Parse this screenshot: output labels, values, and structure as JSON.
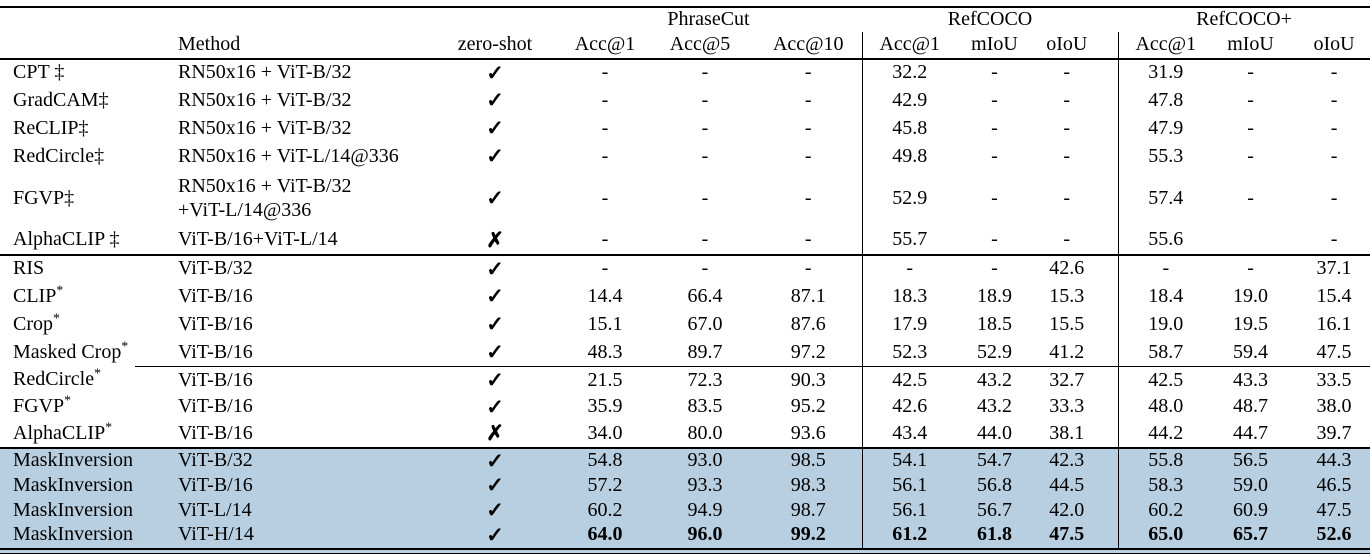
{
  "table": {
    "group_headers": [
      {
        "label": "",
        "span": 3
      },
      {
        "label": "PhraseCut",
        "span": 3
      },
      {
        "label": "RefCOCO",
        "span": 3
      },
      {
        "label": "RefCOCO+",
        "span": 3
      }
    ],
    "column_headers": [
      "",
      "Method",
      "zero-shot",
      "Acc@1",
      "Acc@5",
      "Acc@10",
      "Acc@1",
      "mIoU",
      "oIoU",
      "Acc@1",
      "mIoU",
      "oIoU"
    ],
    "zero_shot_symbols": {
      "yes": "✓",
      "no": "✗"
    },
    "highlight_color": "#b7cfe1",
    "blocks": [
      {
        "id": "dagger-baselines",
        "separator": "none",
        "highlight": false,
        "rows": [
          {
            "method": "CPT ‡",
            "sup": "",
            "backbone": [
              "RN50x16 + ViT-B/32"
            ],
            "zero_shot": "yes",
            "values": [
              "-",
              "-",
              "-",
              "32.2",
              "-",
              "-",
              "31.9",
              "-",
              "-"
            ]
          },
          {
            "method": "GradCAM‡",
            "sup": "",
            "backbone": [
              "RN50x16 + ViT-B/32"
            ],
            "zero_shot": "yes",
            "values": [
              "-",
              "-",
              "-",
              "42.9",
              "-",
              "-",
              "47.8",
              "-",
              "-"
            ]
          },
          {
            "method": "ReCLIP‡",
            "sup": "",
            "backbone": [
              "RN50x16 + ViT-B/32"
            ],
            "zero_shot": "yes",
            "values": [
              "-",
              "-",
              "-",
              "45.8",
              "-",
              "-",
              "47.9",
              "-",
              "-"
            ]
          },
          {
            "method": "RedCircle‡",
            "sup": "",
            "backbone": [
              "RN50x16 + ViT-L/14@336"
            ],
            "zero_shot": "yes",
            "values": [
              "-",
              "-",
              "-",
              "49.8",
              "-",
              "-",
              "55.3",
              "-",
              "-"
            ]
          },
          {
            "method": "FGVP‡",
            "sup": "",
            "backbone": [
              "RN50x16 + ViT-B/32",
              "+ViT-L/14@336"
            ],
            "zero_shot": "yes",
            "tall": true,
            "values": [
              "-",
              "-",
              "-",
              "52.9",
              "-",
              "-",
              "57.4",
              "-",
              "-"
            ]
          },
          {
            "method": "AlphaCLIP ‡",
            "sup": "",
            "backbone": [
              "ViT-B/16+ViT-L/14"
            ],
            "zero_shot": "no",
            "values": [
              "-",
              "-",
              "-",
              "55.7",
              "-",
              "-",
              "55.6",
              "",
              "-"
            ]
          }
        ]
      },
      {
        "id": "clip-baselines",
        "separator": "full",
        "highlight": false,
        "rows": [
          {
            "method": "RIS",
            "sup": "",
            "backbone": [
              "ViT-B/32"
            ],
            "zero_shot": "yes",
            "values": [
              "-",
              "-",
              "-",
              "-",
              "-",
              "42.6",
              "-",
              "-",
              "37.1"
            ]
          },
          {
            "method": "CLIP",
            "sup": "*",
            "backbone": [
              "ViT-B/16"
            ],
            "zero_shot": "yes",
            "values": [
              "14.4",
              "66.4",
              "87.1",
              "18.3",
              "18.9",
              "15.3",
              "18.4",
              "19.0",
              "15.4"
            ]
          },
          {
            "method": "Crop",
            "sup": "*",
            "backbone": [
              "ViT-B/16"
            ],
            "zero_shot": "yes",
            "values": [
              "15.1",
              "67.0",
              "87.6",
              "17.9",
              "18.5",
              "15.5",
              "19.0",
              "19.5",
              "16.1"
            ]
          },
          {
            "method": "Masked Crop",
            "sup": "*",
            "backbone": [
              "ViT-B/16"
            ],
            "zero_shot": "yes",
            "values": [
              "48.3",
              "89.7",
              "97.2",
              "52.3",
              "52.9",
              "41.2",
              "58.7",
              "59.4",
              "47.5"
            ]
          }
        ]
      },
      {
        "id": "visual-prompt-baselines",
        "separator": "partial",
        "highlight": false,
        "rows": [
          {
            "method": "RedCircle",
            "sup": "*",
            "backbone": [
              "ViT-B/16"
            ],
            "zero_shot": "yes",
            "values": [
              "21.5",
              "72.3",
              "90.3",
              "42.5",
              "43.2",
              "32.7",
              "42.5",
              "43.3",
              "33.5"
            ]
          },
          {
            "method": "FGVP",
            "sup": "*",
            "backbone": [
              "ViT-B/16"
            ],
            "zero_shot": "yes",
            "values": [
              "35.9",
              "83.5",
              "95.2",
              "42.6",
              "43.2",
              "33.3",
              "48.0",
              "48.7",
              "38.0"
            ]
          },
          {
            "method": "AlphaCLIP",
            "sup": "*",
            "backbone": [
              "ViT-B/16"
            ],
            "zero_shot": "no",
            "values": [
              "34.0",
              "80.0",
              "93.6",
              "43.4",
              "44.0",
              "38.1",
              "44.2",
              "44.7",
              "39.7"
            ]
          }
        ]
      },
      {
        "id": "maskinversion-ours",
        "separator": "full-thick",
        "highlight": true,
        "rows": [
          {
            "method": "MaskInversion",
            "sup": "",
            "backbone": [
              "ViT-B/32"
            ],
            "zero_shot": "yes",
            "values": [
              "54.8",
              "93.0",
              "98.5",
              "54.1",
              "54.7",
              "42.3",
              "55.8",
              "56.5",
              "44.3"
            ]
          },
          {
            "method": "MaskInversion",
            "sup": "",
            "backbone": [
              "ViT-B/16"
            ],
            "zero_shot": "yes",
            "values": [
              "57.2",
              "93.3",
              "98.3",
              "56.1",
              "56.8",
              "44.5",
              "58.3",
              "59.0",
              "46.5"
            ]
          },
          {
            "method": "MaskInversion",
            "sup": "",
            "backbone": [
              "ViT-L/14"
            ],
            "zero_shot": "yes",
            "values": [
              "60.2",
              "94.9",
              "98.7",
              "56.1",
              "56.7",
              "42.0",
              "60.2",
              "60.9",
              "47.5"
            ]
          },
          {
            "method": "MaskInversion",
            "sup": "",
            "backbone": [
              "ViT-H/14"
            ],
            "zero_shot": "yes",
            "bold": true,
            "values": [
              "64.0",
              "96.0",
              "99.2",
              "61.2",
              "61.8",
              "47.5",
              "65.0",
              "65.7",
              "52.6"
            ]
          }
        ]
      }
    ]
  }
}
